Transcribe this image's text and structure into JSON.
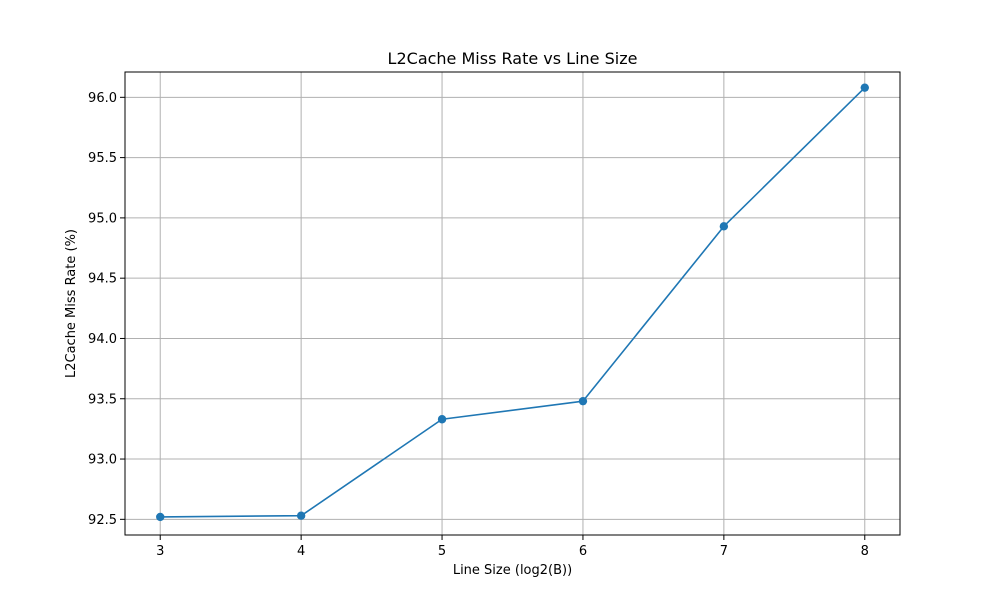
{
  "chart_data": {
    "type": "line",
    "title": "L2Cache Miss Rate vs Line Size",
    "xlabel": "Line Size (log2(B))",
    "ylabel": "L2Cache Miss Rate (%)",
    "x": [
      3,
      4,
      5,
      6,
      7,
      8
    ],
    "series": [
      {
        "values": [
          92.52,
          92.53,
          93.33,
          93.48,
          94.93,
          96.08
        ],
        "color": "#1f77b4",
        "marker": "circle"
      }
    ],
    "xlim": [
      2.75,
      8.25
    ],
    "ylim": [
      92.37,
      96.21
    ],
    "xticks": [
      "3",
      "4",
      "5",
      "6",
      "7",
      "8"
    ],
    "yticks": [
      "92.5",
      "93.0",
      "93.5",
      "94.0",
      "94.5",
      "95.0",
      "95.5",
      "96.0"
    ],
    "grid": true
  }
}
